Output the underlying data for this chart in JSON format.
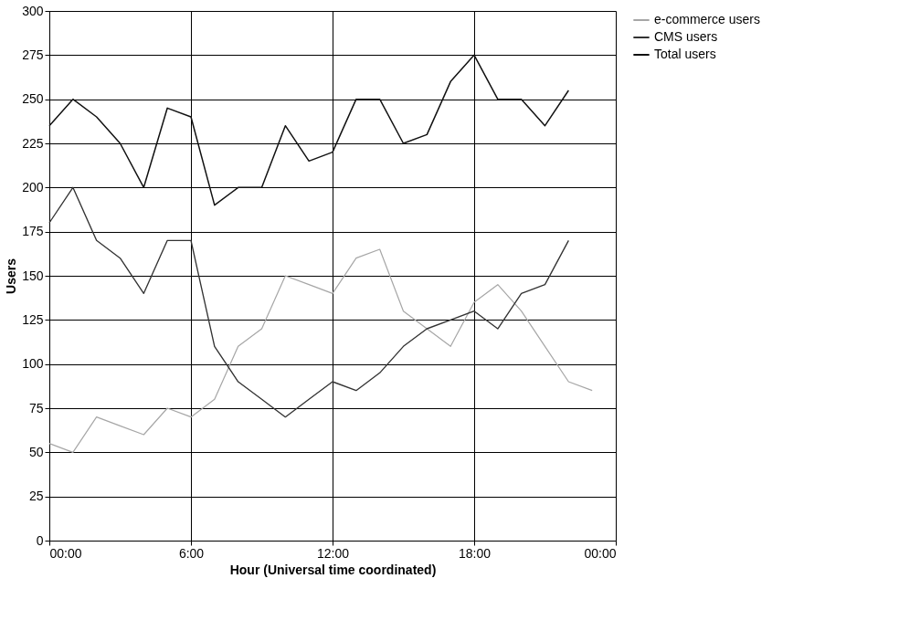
{
  "chart_data": {
    "type": "line",
    "xlabel": "Hour (Universal time coordinated)",
    "ylabel": "Users",
    "xlim": [
      0,
      24
    ],
    "xticks": [
      {
        "value": 0,
        "label": "00:00"
      },
      {
        "value": 6,
        "label": "6:00"
      },
      {
        "value": 12,
        "label": "12:00"
      },
      {
        "value": 18,
        "label": "18:00"
      },
      {
        "value": 24,
        "label": "00:00"
      }
    ],
    "ylim": [
      0,
      300
    ],
    "yticks": [
      0,
      25,
      50,
      75,
      100,
      125,
      150,
      175,
      200,
      225,
      250,
      275,
      300
    ],
    "grid": true,
    "legend": "right",
    "marker": "none",
    "line_style": "solid",
    "series": [
      {
        "name": "e-commerce users",
        "color": "#a6a6a6",
        "x": [
          0,
          1,
          2,
          3,
          4,
          5,
          6,
          7,
          8,
          9,
          10,
          11,
          12,
          13,
          14,
          15,
          16,
          17,
          18,
          19,
          20,
          21,
          22,
          23
        ],
        "values": [
          55,
          50,
          70,
          65,
          60,
          75,
          70,
          80,
          110,
          120,
          150,
          145,
          140,
          160,
          165,
          130,
          120,
          110,
          135,
          145,
          130,
          110,
          90,
          85
        ]
      },
      {
        "name": "CMS users",
        "color": "#333333",
        "x": [
          0,
          1,
          2,
          3,
          4,
          5,
          6,
          7,
          8,
          9,
          10,
          11,
          12,
          13,
          14,
          15,
          16,
          17,
          18,
          19,
          20,
          21,
          22
        ],
        "values": [
          180,
          200,
          170,
          160,
          140,
          170,
          170,
          110,
          90,
          80,
          70,
          80,
          90,
          85,
          95,
          110,
          120,
          125,
          130,
          120,
          140,
          145,
          170
        ]
      },
      {
        "name": "Total users",
        "color": "#111111",
        "x": [
          0,
          1,
          2,
          3,
          4,
          5,
          6,
          7,
          8,
          9,
          10,
          11,
          12,
          13,
          14,
          15,
          16,
          17,
          18,
          19,
          20,
          21,
          22
        ],
        "values": [
          235,
          250,
          240,
          225,
          200,
          245,
          240,
          190,
          200,
          200,
          235,
          215,
          220,
          250,
          250,
          225,
          230,
          260,
          275,
          250,
          250,
          235,
          255
        ]
      }
    ]
  }
}
